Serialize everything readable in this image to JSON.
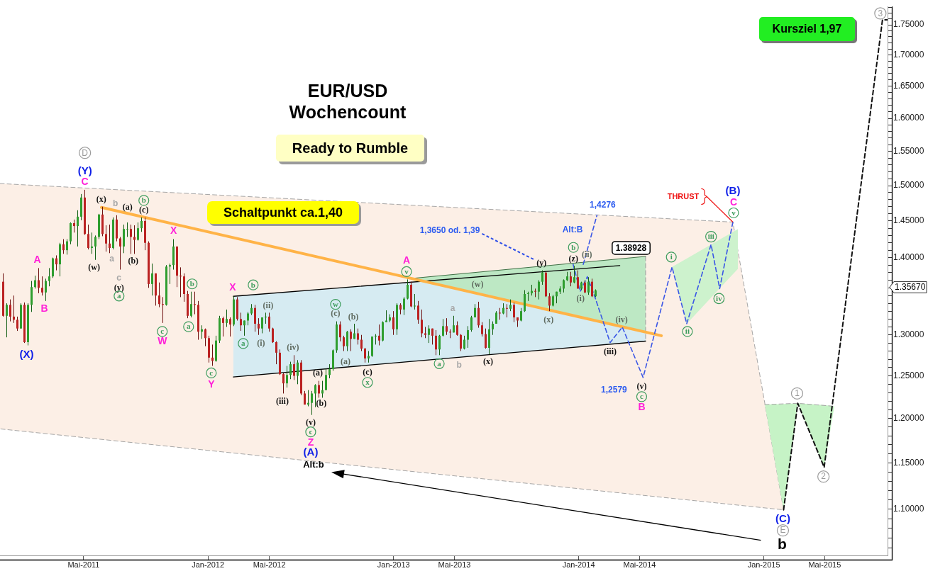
{
  "chart_data": {
    "type": "candlestick",
    "title": "EUR/USD Wochencount",
    "subtitle": "Ready to Rumble",
    "x": [
      "2010-11-22",
      "2010-11-29",
      "2010-12-06",
      "2010-12-13",
      "2010-12-20",
      "2010-12-27",
      "2011-01-03",
      "2011-01-10",
      "2011-01-17",
      "2011-01-24",
      "2011-01-31",
      "2011-02-07",
      "2011-02-14",
      "2011-02-21",
      "2011-02-28",
      "2011-03-07",
      "2011-03-14",
      "2011-03-21",
      "2011-03-28",
      "2011-04-04",
      "2011-04-11",
      "2011-04-18",
      "2011-04-25",
      "2011-05-02",
      "2011-05-09",
      "2011-05-16",
      "2011-05-23",
      "2011-05-30",
      "2011-06-06",
      "2011-06-13",
      "2011-06-20",
      "2011-06-27",
      "2011-07-04",
      "2011-07-11",
      "2011-07-18",
      "2011-07-25",
      "2011-08-01",
      "2011-08-08",
      "2011-08-15",
      "2011-08-22",
      "2011-08-29",
      "2011-09-05",
      "2011-09-12",
      "2011-09-19",
      "2011-09-26",
      "2011-10-03",
      "2011-10-10",
      "2011-10-17",
      "2011-10-24",
      "2011-10-31",
      "2011-11-07",
      "2011-11-14",
      "2011-11-21",
      "2011-11-28",
      "2011-12-05",
      "2011-12-12",
      "2011-12-19",
      "2011-12-26",
      "2012-01-02",
      "2012-01-09",
      "2012-01-16",
      "2012-01-23",
      "2012-01-30",
      "2012-02-06",
      "2012-02-13",
      "2012-02-20",
      "2012-02-27",
      "2012-03-05",
      "2012-03-12",
      "2012-03-19",
      "2012-03-26",
      "2012-04-02",
      "2012-04-09",
      "2012-04-16",
      "2012-04-23",
      "2012-04-30",
      "2012-05-07",
      "2012-05-14",
      "2012-05-21",
      "2012-05-28",
      "2012-06-04",
      "2012-06-11",
      "2012-06-18",
      "2012-06-25",
      "2012-07-02",
      "2012-07-09",
      "2012-07-16",
      "2012-07-23",
      "2012-07-30",
      "2012-08-06",
      "2012-08-13",
      "2012-08-20",
      "2012-08-27",
      "2012-09-03",
      "2012-09-10",
      "2012-09-17",
      "2012-09-24",
      "2012-10-01",
      "2012-10-08",
      "2012-10-15",
      "2012-10-22",
      "2012-10-29",
      "2012-11-05",
      "2012-11-12",
      "2012-11-19",
      "2012-11-26",
      "2012-12-03",
      "2012-12-10",
      "2012-12-17",
      "2012-12-24",
      "2012-12-31",
      "2013-01-07",
      "2013-01-14",
      "2013-01-21",
      "2013-01-28",
      "2013-02-04",
      "2013-02-11",
      "2013-02-18",
      "2013-02-25",
      "2013-03-04",
      "2013-03-11",
      "2013-03-18",
      "2013-03-25",
      "2013-04-01",
      "2013-04-08",
      "2013-04-15",
      "2013-04-22",
      "2013-04-29",
      "2013-05-06",
      "2013-05-13",
      "2013-05-20",
      "2013-05-27",
      "2013-06-03",
      "2013-06-10",
      "2013-06-17",
      "2013-06-24",
      "2013-07-01",
      "2013-07-08",
      "2013-07-15",
      "2013-07-22",
      "2013-07-29",
      "2013-08-05",
      "2013-08-12",
      "2013-08-19",
      "2013-08-26",
      "2013-09-02",
      "2013-09-09",
      "2013-09-16",
      "2013-09-23",
      "2013-09-30",
      "2013-10-07",
      "2013-10-14",
      "2013-10-21",
      "2013-10-28",
      "2013-11-04",
      "2013-11-11",
      "2013-11-18",
      "2013-11-25",
      "2013-12-02",
      "2013-12-09",
      "2013-12-16",
      "2013-12-23",
      "2013-12-30",
      "2014-01-06",
      "2014-01-13",
      "2014-01-20",
      "2014-01-27",
      "2014-02-03"
    ],
    "ohlc": [
      [
        1.368,
        1.379,
        1.323,
        1.324
      ],
      [
        1.324,
        1.34,
        1.297,
        1.338
      ],
      [
        1.338,
        1.345,
        1.317,
        1.323
      ],
      [
        1.323,
        1.35,
        1.315,
        1.319
      ],
      [
        1.319,
        1.323,
        1.305,
        1.308
      ],
      [
        1.308,
        1.34,
        1.308,
        1.338
      ],
      [
        1.338,
        1.341,
        1.29,
        1.291
      ],
      [
        1.291,
        1.34,
        1.287,
        1.338
      ],
      [
        1.338,
        1.369,
        1.329,
        1.361
      ],
      [
        1.361,
        1.376,
        1.359,
        1.37
      ],
      [
        1.37,
        1.386,
        1.353,
        1.36
      ],
      [
        1.36,
        1.375,
        1.35,
        1.354
      ],
      [
        1.354,
        1.372,
        1.343,
        1.369
      ],
      [
        1.369,
        1.386,
        1.362,
        1.375
      ],
      [
        1.375,
        1.4,
        1.373,
        1.399
      ],
      [
        1.399,
        1.403,
        1.383,
        1.391
      ],
      [
        1.391,
        1.42,
        1.375,
        1.418
      ],
      [
        1.418,
        1.425,
        1.405,
        1.41
      ],
      [
        1.41,
        1.425,
        1.404,
        1.422
      ],
      [
        1.422,
        1.448,
        1.418,
        1.447
      ],
      [
        1.447,
        1.452,
        1.434,
        1.443
      ],
      [
        1.443,
        1.465,
        1.415,
        1.456
      ],
      [
        1.456,
        1.488,
        1.451,
        1.483
      ],
      [
        1.483,
        1.494,
        1.431,
        1.432
      ],
      [
        1.432,
        1.445,
        1.411,
        1.413
      ],
      [
        1.413,
        1.434,
        1.405,
        1.415
      ],
      [
        1.415,
        1.43,
        1.397,
        1.428
      ],
      [
        1.428,
        1.46,
        1.425,
        1.459
      ],
      [
        1.459,
        1.47,
        1.429,
        1.432
      ],
      [
        1.432,
        1.444,
        1.408,
        1.419
      ],
      [
        1.419,
        1.445,
        1.406,
        1.413
      ],
      [
        1.413,
        1.455,
        1.411,
        1.452
      ],
      [
        1.452,
        1.458,
        1.422,
        1.426
      ],
      [
        1.426,
        1.428,
        1.384,
        1.415
      ],
      [
        1.415,
        1.445,
        1.406,
        1.439
      ],
      [
        1.439,
        1.448,
        1.428,
        1.439
      ],
      [
        1.439,
        1.445,
        1.405,
        1.428
      ],
      [
        1.428,
        1.444,
        1.405,
        1.424
      ],
      [
        1.424,
        1.448,
        1.423,
        1.44
      ],
      [
        1.44,
        1.455,
        1.435,
        1.45
      ],
      [
        1.45,
        1.455,
        1.41,
        1.42
      ],
      [
        1.42,
        1.422,
        1.36,
        1.365
      ],
      [
        1.365,
        1.392,
        1.35,
        1.379
      ],
      [
        1.379,
        1.379,
        1.337,
        1.35
      ],
      [
        1.35,
        1.367,
        1.335,
        1.339
      ],
      [
        1.339,
        1.348,
        1.315,
        1.338
      ],
      [
        1.338,
        1.39,
        1.337,
        1.388
      ],
      [
        1.388,
        1.392,
        1.365,
        1.39
      ],
      [
        1.39,
        1.425,
        1.384,
        1.415
      ],
      [
        1.415,
        1.415,
        1.361,
        1.376
      ],
      [
        1.376,
        1.387,
        1.348,
        1.375
      ],
      [
        1.375,
        1.379,
        1.342,
        1.352
      ],
      [
        1.352,
        1.356,
        1.321,
        1.324
      ],
      [
        1.324,
        1.355,
        1.322,
        1.339
      ],
      [
        1.339,
        1.355,
        1.326,
        1.338
      ],
      [
        1.338,
        1.343,
        1.294,
        1.304
      ],
      [
        1.304,
        1.312,
        1.295,
        1.307
      ],
      [
        1.307,
        1.308,
        1.286,
        1.296
      ],
      [
        1.296,
        1.299,
        1.266,
        1.272
      ],
      [
        1.272,
        1.288,
        1.262,
        1.268
      ],
      [
        1.268,
        1.299,
        1.267,
        1.293
      ],
      [
        1.293,
        1.324,
        1.29,
        1.321
      ],
      [
        1.321,
        1.323,
        1.298,
        1.315
      ],
      [
        1.315,
        1.332,
        1.31,
        1.32
      ],
      [
        1.32,
        1.322,
        1.298,
        1.313
      ],
      [
        1.313,
        1.349,
        1.311,
        1.345
      ],
      [
        1.345,
        1.348,
        1.318,
        1.32
      ],
      [
        1.32,
        1.328,
        1.305,
        1.312
      ],
      [
        1.312,
        1.318,
        1.299,
        1.318
      ],
      [
        1.318,
        1.329,
        1.312,
        1.327
      ],
      [
        1.327,
        1.339,
        1.325,
        1.334
      ],
      [
        1.334,
        1.338,
        1.304,
        1.314
      ],
      [
        1.314,
        1.321,
        1.3,
        1.308
      ],
      [
        1.308,
        1.322,
        1.302,
        1.322
      ],
      [
        1.322,
        1.328,
        1.314,
        1.323
      ],
      [
        1.323,
        1.328,
        1.304,
        1.308
      ],
      [
        1.308,
        1.309,
        1.29,
        1.291
      ],
      [
        1.291,
        1.292,
        1.264,
        1.278
      ],
      [
        1.278,
        1.282,
        1.251,
        1.252
      ],
      [
        1.252,
        1.253,
        1.229,
        1.241
      ],
      [
        1.241,
        1.262,
        1.236,
        1.251
      ],
      [
        1.251,
        1.267,
        1.246,
        1.264
      ],
      [
        1.264,
        1.275,
        1.245,
        1.25
      ],
      [
        1.25,
        1.269,
        1.24,
        1.266
      ],
      [
        1.266,
        1.269,
        1.227,
        1.229
      ],
      [
        1.229,
        1.232,
        1.216,
        1.216
      ],
      [
        1.216,
        1.233,
        1.214,
        1.218
      ],
      [
        1.218,
        1.232,
        1.204,
        1.229
      ],
      [
        1.229,
        1.24,
        1.213,
        1.239
      ],
      [
        1.239,
        1.244,
        1.224,
        1.229
      ],
      [
        1.229,
        1.244,
        1.224,
        1.233
      ],
      [
        1.233,
        1.259,
        1.233,
        1.251
      ],
      [
        1.251,
        1.264,
        1.247,
        1.258
      ],
      [
        1.258,
        1.282,
        1.256,
        1.281
      ],
      [
        1.281,
        1.317,
        1.278,
        1.313
      ],
      [
        1.313,
        1.317,
        1.292,
        1.297
      ],
      [
        1.297,
        1.299,
        1.28,
        1.286
      ],
      [
        1.286,
        1.305,
        1.28,
        1.304
      ],
      [
        1.304,
        1.307,
        1.28,
        1.295
      ],
      [
        1.295,
        1.314,
        1.295,
        1.302
      ],
      [
        1.302,
        1.308,
        1.288,
        1.294
      ],
      [
        1.294,
        1.3,
        1.28,
        1.283
      ],
      [
        1.283,
        1.284,
        1.266,
        1.271
      ],
      [
        1.271,
        1.28,
        1.266,
        1.274
      ],
      [
        1.274,
        1.298,
        1.273,
        1.298
      ],
      [
        1.298,
        1.301,
        1.288,
        1.299
      ],
      [
        1.299,
        1.313,
        1.287,
        1.293
      ],
      [
        1.293,
        1.317,
        1.292,
        1.316
      ],
      [
        1.316,
        1.331,
        1.316,
        1.318
      ],
      [
        1.318,
        1.326,
        1.316,
        1.322
      ],
      [
        1.322,
        1.33,
        1.3,
        1.307
      ],
      [
        1.307,
        1.34,
        1.3,
        1.338
      ],
      [
        1.338,
        1.34,
        1.326,
        1.332
      ],
      [
        1.332,
        1.348,
        1.325,
        1.346
      ],
      [
        1.346,
        1.371,
        1.345,
        1.364
      ],
      [
        1.364,
        1.368,
        1.335,
        1.336
      ],
      [
        1.336,
        1.352,
        1.332,
        1.337
      ],
      [
        1.337,
        1.343,
        1.314,
        1.319
      ],
      [
        1.319,
        1.332,
        1.297,
        1.302
      ],
      [
        1.302,
        1.31,
        1.296,
        1.3
      ],
      [
        1.3,
        1.312,
        1.29,
        1.308
      ],
      [
        1.308,
        1.308,
        1.288,
        1.299
      ],
      [
        1.299,
        1.306,
        1.275,
        1.282
      ],
      [
        1.282,
        1.3,
        1.275,
        1.299
      ],
      [
        1.299,
        1.32,
        1.298,
        1.311
      ],
      [
        1.311,
        1.321,
        1.3,
        1.304
      ],
      [
        1.304,
        1.307,
        1.296,
        1.303
      ],
      [
        1.303,
        1.324,
        1.303,
        1.312
      ],
      [
        1.312,
        1.317,
        1.299,
        1.3
      ],
      [
        1.3,
        1.301,
        1.28,
        1.283
      ],
      [
        1.283,
        1.299,
        1.282,
        1.294
      ],
      [
        1.294,
        1.311,
        1.284,
        1.306
      ],
      [
        1.306,
        1.324,
        1.304,
        1.322
      ],
      [
        1.322,
        1.339,
        1.322,
        1.334
      ],
      [
        1.334,
        1.342,
        1.309,
        1.312
      ],
      [
        1.312,
        1.316,
        1.298,
        1.301
      ],
      [
        1.301,
        1.308,
        1.283,
        1.284
      ],
      [
        1.284,
        1.32,
        1.276,
        1.307
      ],
      [
        1.307,
        1.317,
        1.3,
        1.314
      ],
      [
        1.314,
        1.33,
        1.314,
        1.328
      ],
      [
        1.328,
        1.334,
        1.319,
        1.327
      ],
      [
        1.327,
        1.34,
        1.326,
        1.334
      ],
      [
        1.334,
        1.339,
        1.322,
        1.333
      ],
      [
        1.333,
        1.345,
        1.33,
        1.338
      ],
      [
        1.338,
        1.341,
        1.316,
        1.322
      ],
      [
        1.322,
        1.322,
        1.31,
        1.318
      ],
      [
        1.318,
        1.334,
        1.317,
        1.33
      ],
      [
        1.33,
        1.357,
        1.329,
        1.352
      ],
      [
        1.352,
        1.355,
        1.343,
        1.353
      ],
      [
        1.353,
        1.364,
        1.35,
        1.356
      ],
      [
        1.356,
        1.359,
        1.348,
        1.355
      ],
      [
        1.355,
        1.37,
        1.345,
        1.368
      ],
      [
        1.368,
        1.383,
        1.364,
        1.38
      ],
      [
        1.38,
        1.382,
        1.348,
        1.349
      ],
      [
        1.349,
        1.353,
        1.33,
        1.337
      ],
      [
        1.337,
        1.351,
        1.336,
        1.349
      ],
      [
        1.349,
        1.355,
        1.34,
        1.355
      ],
      [
        1.355,
        1.362,
        1.352,
        1.359
      ],
      [
        1.359,
        1.371,
        1.354,
        1.37
      ],
      [
        1.37,
        1.381,
        1.369,
        1.375
      ],
      [
        1.375,
        1.381,
        1.362,
        1.367
      ],
      [
        1.367,
        1.389,
        1.366,
        1.374
      ],
      [
        1.374,
        1.383,
        1.359,
        1.359
      ],
      [
        1.359,
        1.368,
        1.357,
        1.367
      ],
      [
        1.367,
        1.37,
        1.353,
        1.354
      ],
      [
        1.354,
        1.374,
        1.351,
        1.368
      ],
      [
        1.368,
        1.372,
        1.348,
        1.349
      ],
      [
        1.349,
        1.358,
        1.348,
        1.3567
      ]
    ],
    "xlim": [
      "2010-11-17",
      "2015-09-02"
    ],
    "xticks": [
      {
        "value": "2011-05",
        "label": "Mai-2011"
      },
      {
        "value": "2012-01",
        "label": "Jan-2012"
      },
      {
        "value": "2012-05",
        "label": "Mai-2012"
      },
      {
        "value": "2013-01",
        "label": "Jan-2013"
      },
      {
        "value": "2013-05",
        "label": "Mai-2013"
      },
      {
        "value": "2014-01",
        "label": "Jan-2014"
      },
      {
        "value": "2014-05",
        "label": "Mai-2014"
      },
      {
        "value": "2015-01",
        "label": "Jan-2015"
      },
      {
        "value": "2015-05",
        "label": "Mai-2015"
      }
    ],
    "ylim": [
      1.0523,
      1.781
    ],
    "log": "y",
    "yticks": [
      {
        "value": 1.06,
        "label": null
      },
      {
        "value": 1.07,
        "label": null
      },
      {
        "value": 1.08,
        "label": null
      },
      {
        "value": 1.09,
        "label": null
      },
      {
        "value": 1.1,
        "label": "1.10000"
      },
      {
        "value": 1.11,
        "label": null
      },
      {
        "value": 1.12,
        "label": null
      },
      {
        "value": 1.13,
        "label": null
      },
      {
        "value": 1.14,
        "label": null
      },
      {
        "value": 1.15,
        "label": "1.15000"
      },
      {
        "value": 1.16,
        "label": null
      },
      {
        "value": 1.17,
        "label": null
      },
      {
        "value": 1.18,
        "label": null
      },
      {
        "value": 1.19,
        "label": null
      },
      {
        "value": 1.2,
        "label": "1.20000"
      },
      {
        "value": 1.21,
        "label": null
      },
      {
        "value": 1.22,
        "label": null
      },
      {
        "value": 1.23,
        "label": null
      },
      {
        "value": 1.24,
        "label": null
      },
      {
        "value": 1.25,
        "label": "1.25000"
      },
      {
        "value": 1.26,
        "label": null
      },
      {
        "value": 1.27,
        "label": null
      },
      {
        "value": 1.28,
        "label": null
      },
      {
        "value": 1.29,
        "label": null
      },
      {
        "value": 1.3,
        "label": "1.30000"
      },
      {
        "value": 1.31,
        "label": null
      },
      {
        "value": 1.32,
        "label": null
      },
      {
        "value": 1.33,
        "label": null
      },
      {
        "value": 1.34,
        "label": null
      },
      {
        "value": 1.35,
        "label": null
      },
      {
        "value": 1.36,
        "label": null
      },
      {
        "value": 1.37,
        "label": null
      },
      {
        "value": 1.38,
        "label": null
      },
      {
        "value": 1.39,
        "label": null
      },
      {
        "value": 1.4,
        "label": "1.40000"
      },
      {
        "value": 1.41,
        "label": null
      },
      {
        "value": 1.42,
        "label": null
      },
      {
        "value": 1.43,
        "label": null
      },
      {
        "value": 1.44,
        "label": null
      },
      {
        "value": 1.45,
        "label": "1.45000"
      },
      {
        "value": 1.46,
        "label": null
      },
      {
        "value": 1.47,
        "label": null
      },
      {
        "value": 1.48,
        "label": null
      },
      {
        "value": 1.49,
        "label": null
      },
      {
        "value": 1.5,
        "label": "1.50000"
      },
      {
        "value": 1.51,
        "label": null
      },
      {
        "value": 1.52,
        "label": null
      },
      {
        "value": 1.53,
        "label": null
      },
      {
        "value": 1.54,
        "label": null
      },
      {
        "value": 1.55,
        "label": "1.55000"
      },
      {
        "value": 1.56,
        "label": null
      },
      {
        "value": 1.57,
        "label": null
      },
      {
        "value": 1.58,
        "label": null
      },
      {
        "value": 1.59,
        "label": null
      },
      {
        "value": 1.6,
        "label": "1.60000"
      },
      {
        "value": 1.61,
        "label": null
      },
      {
        "value": 1.62,
        "label": null
      },
      {
        "value": 1.63,
        "label": null
      },
      {
        "value": 1.64,
        "label": null
      },
      {
        "value": 1.65,
        "label": "1.65000"
      },
      {
        "value": 1.66,
        "label": null
      },
      {
        "value": 1.67,
        "label": null
      },
      {
        "value": 1.68,
        "label": null
      },
      {
        "value": 1.69,
        "label": null
      },
      {
        "value": 1.7,
        "label": "1.70000"
      },
      {
        "value": 1.71,
        "label": null
      },
      {
        "value": 1.72,
        "label": null
      },
      {
        "value": 1.73,
        "label": null
      },
      {
        "value": 1.74,
        "label": null
      },
      {
        "value": 1.75,
        "label": "1.75000"
      },
      {
        "value": 1.76,
        "label": null
      },
      {
        "value": 1.77,
        "label": null
      },
      {
        "value": 1.78,
        "label": null
      }
    ],
    "series": [
      {
        "type": "line",
        "x": [
          "2010-11-17",
          "2014-11-01",
          "2015-02-09"
        ],
        "values": [
          null,
          null,
          null
        ],
        "lower": [
          1.188,
          1.1048,
          1.0993
        ],
        "upper": [
          1.503,
          1.4485,
          1.0993
        ],
        "color": "#fcefe6"
      },
      {
        "type": "line",
        "x": [
          "2010-11-17",
          "2014-11-01",
          "2015-02-09",
          "2010-11-17"
        ],
        "values": [
          1.503,
          1.4485,
          1.0993,
          1.188
        ],
        "color": "#a6a6a6",
        "line_style": "dashed"
      },
      {
        "type": "line",
        "x": [
          "2012-02-20",
          "2014-05-13"
        ],
        "values": [
          null,
          null
        ],
        "lower": [
          1.2487,
          1.2923
        ],
        "upper": [
          1.349,
          1.391
        ],
        "color": "#d6ebf2"
      },
      {
        "type": "line",
        "x": [
          "2013-01-28",
          "2014-05-13"
        ],
        "values": [
          null,
          null
        ],
        "lower": [
          1.3718,
          1.3036
        ],
        "upper": [
          1.3718,
          1.4016
        ],
        "color": "#bde8c4"
      },
      {
        "type": "line",
        "x": [
          "2014-05-13",
          "2014-05-13"
        ],
        "values": [
          1.4016,
          1.2923
        ],
        "color": "#9a9a9a",
        "line_style": "dashed"
      },
      {
        "type": "line",
        "x": [
          "2012-02-20",
          "2014-05-13"
        ],
        "values": [
          1.2487,
          1.2923
        ],
        "color": "#000000",
        "line_style": "solid"
      },
      {
        "type": "line",
        "x": [
          "2012-02-20",
          "2014-03-23"
        ],
        "values": [
          1.349,
          1.3893
        ],
        "color": "#000000",
        "line_style": "solid"
      },
      {
        "type": "line",
        "x": [
          "2013-01-28",
          "2014-05-13"
        ],
        "values": [
          1.3718,
          1.4016
        ],
        "color": "#3f6f45",
        "line_style": "solid"
      },
      {
        "type": "line",
        "x": [
          "2011-06-05",
          "2014-06-13"
        ],
        "values": [
          1.469,
          1.299
        ],
        "color": "#ffb347",
        "line_style": "solid"
      },
      {
        "type": "line",
        "x": [
          "2014-07-04",
          "2014-08-02",
          "2014-11-11"
        ],
        "values": [
          null,
          null,
          null
        ],
        "lower": [
          1.3875,
          1.314,
          1.385
        ],
        "upper": [
          1.3875,
          1.3988,
          1.4388
        ],
        "color": "#cdf2cd"
      },
      {
        "type": "line",
        "x": [
          "2015-01-03",
          "2015-02-09",
          "2015-03-09"
        ],
        "values": [
          null,
          null,
          null
        ],
        "lower": [
          1.216,
          1.0993,
          1.2175
        ],
        "upper": [
          1.216,
          1.2168,
          1.2175
        ],
        "color": "#c6f3c6"
      },
      {
        "type": "line",
        "x": [
          "2015-03-09",
          "2015-04-30",
          "2015-05-20"
        ],
        "values": [
          null,
          null,
          null
        ],
        "lower": [
          1.2175,
          1.145,
          1.214
        ],
        "upper": [
          1.2175,
          1.2155,
          1.214
        ],
        "color": "#c6f3c6"
      },
      {
        "type": "line",
        "x": [
          "2015-01-03",
          "2015-03-09",
          "2015-05-20"
        ],
        "values": [
          1.216,
          1.2175,
          1.214
        ],
        "color": "#a6a6a6",
        "line_style": "dashed"
      },
      {
        "type": "line",
        "x": [
          "2013-12-21",
          "2014-01-04",
          "2014-01-18",
          "2014-02-02",
          "2014-03-04",
          "2014-03-28",
          "2014-05-08",
          "2014-07-04",
          "2014-08-02",
          "2014-09-19",
          "2014-10-06",
          "2014-11-01"
        ],
        "values": [
          1.391,
          1.3553,
          1.3746,
          1.348,
          1.2905,
          1.3098,
          1.248,
          1.3875,
          1.314,
          1.4177,
          1.359,
          1.4485
        ],
        "color": "#3a56e6",
        "line_style": "dashed"
      },
      {
        "type": "line",
        "x": [
          "2014-01-10",
          "2014-02-06"
        ],
        "values": [
          1.391,
          1.458
        ],
        "color": "#3a56e6",
        "line_style": "dashed"
      },
      {
        "type": "line",
        "x": [
          "2015-02-09",
          "2015-03-09",
          "2015-04-30",
          "2015-08-23",
          "2015-09-02"
        ],
        "values": [
          1.0993,
          1.2175,
          1.145,
          1.7585,
          1.7585
        ],
        "color": "#111111",
        "line_style": "dashed"
      }
    ],
    "annotations": [
      "D",
      {
        "text": "(Y)",
        "x": "2011-05-02",
        "y": 1.494
      },
      {
        "text": "C",
        "x": "2011-05-02",
        "y": 1.494
      },
      {
        "text": "(x)",
        "x": "2011-06-06",
        "y": 1.47
      },
      {
        "text": "b",
        "x": "2011-07-04",
        "y": 1.458
      },
      {
        "text": "(a)",
        "x": "2011-07-25",
        "y": 1.448
      },
      {
        "text": "b",
        "x": "2011-08-29",
        "y": 1.455
      },
      {
        "text": "(c)",
        "x": "2011-08-29",
        "y": 1.455
      },
      {
        "text": "X",
        "x": "2011-10-24",
        "y": 1.425
      },
      {
        "text": "A",
        "x": "2011-01-31",
        "y": 1.386
      },
      {
        "text": "(w)",
        "x": "2011-05-23",
        "y": 1.397
      },
      {
        "text": "a",
        "x": "2011-06-20",
        "y": 1.406
      },
      {
        "text": "(b)",
        "x": "2011-08-08",
        "y": 1.405
      },
      {
        "text": "c",
        "x": "2011-07-11",
        "y": 1.384
      },
      {
        "text": "(y)",
        "x": "2011-07-11",
        "y": 1.384
      },
      "a",
      {
        "text": "B",
        "x": "2011-02-14",
        "y": 1.343
      },
      {
        "text": "b",
        "x": "2011-11-28",
        "y": 1.355
      },
      {
        "text": "a",
        "x": "2011-11-21",
        "y": 1.321
      },
      {
        "text": "c",
        "x": "2011-10-03",
        "y": 1.315
      },
      {
        "text": "W",
        "x": "2011-10-03",
        "y": 1.315
      },
      {
        "text": "(X)",
        "x": "2011-01-10",
        "y": 1.287
      },
      {
        "text": "c",
        "x": "2012-01-09",
        "y": 1.262
      },
      {
        "text": "Y",
        "x": "2012-01-09",
        "y": 1.262
      },
      {
        "text": "X",
        "x": "2012-02-20",
        "y": 1.349
      },
      {
        "text": "b",
        "x": "2012-03-26",
        "y": 1.339
      },
      {
        "text": "(ii)",
        "x": "2012-04-30",
        "y": 1.328
      },
      {
        "text": "a",
        "x": "2012-03-12",
        "y": 1.299
      },
      {
        "text": "(i)",
        "x": "2012-04-09",
        "y": 1.3
      },
      {
        "text": "(iv)",
        "x": "2012-06-18",
        "y": 1.275
      },
      {
        "text": "(iii)",
        "x": "2012-05-28",
        "y": 1.229
      },
      {
        "text": "(a)",
        "x": "2012-07-30",
        "y": 1.24
      },
      {
        "text": "(b)",
        "x": "2012-08-06",
        "y": 1.224
      },
      {
        "text": "(v)",
        "x": "2012-07-23",
        "y": 1.204
      },
      {
        "text": "c",
        "x": "2012-07-23",
        "y": 1.204
      },
      {
        "text": "Z",
        "x": "2012-07-23",
        "y": 1.204
      },
      "(A)",
      "Alt:b",
      {
        "text": "w",
        "x": "2012-09-10",
        "y": 1.317
      },
      {
        "text": "(c)",
        "x": "2012-09-10",
        "y": 1.317
      },
      {
        "text": "(b)",
        "x": "2012-10-15",
        "y": 1.314
      },
      {
        "text": "(a)",
        "x": "2012-09-24",
        "y": 1.28
      },
      {
        "text": "(c)",
        "x": "2012-11-12",
        "y": 1.266
      },
      {
        "text": "x",
        "x": "2012-11-12",
        "y": 1.266
      },
      {
        "text": "A",
        "x": "2013-01-28",
        "y": 1.371
      },
      {
        "text": "v",
        "x": "2013-01-28",
        "y": 1.371
      },
      {
        "text": "(w)",
        "x": "2013-06-17",
        "y": 1.342
      },
      {
        "text": "a",
        "x": "2013-04-29",
        "y": 1.324
      },
      {
        "text": "a",
        "x": "2013-04-01",
        "y": 1.275
      },
      {
        "text": "b",
        "x": "2013-05-13",
        "y": 1.28
      },
      {
        "text": "(x)",
        "x": "2013-07-08",
        "y": 1.276
      },
      "1,3650 od. 1,39",
      {
        "text": "(y)",
        "x": "2013-10-21",
        "y": 1.383
      },
      {
        "text": "(x)",
        "x": "2013-11-04",
        "y": 1.33
      },
      "Alt:B",
      {
        "text": "b",
        "x": "2013-12-23",
        "y": 1.389
      },
      {
        "text": "(z)",
        "x": "2013-12-23",
        "y": 1.389
      },
      {
        "text": "(ii)",
        "x": "2014-01-20",
        "y": 1.374
      },
      {
        "text": "(i)",
        "x": "2014-01-06",
        "y": 1.357
      },
      {
        "text": "(iii)",
        "x": "2014-03-04",
        "y": 1.2905
      },
      {
        "text": "1,4276",
        "x": "2014-02-06",
        "y": 1.458
      },
      {
        "text": "1.38928",
        "x": "2014-03-23",
        "y": 1.3893
      },
      {
        "text": "(iv)",
        "x": "2014-03-28",
        "y": 1.3098
      },
      {
        "text": "1,2579",
        "x": "2014-05-08",
        "y": 1.248
      },
      {
        "text": "(v)",
        "x": "2014-05-08",
        "y": 1.248
      },
      {
        "text": "c",
        "x": "2014-05-08",
        "y": 1.248
      },
      {
        "text": "B",
        "x": "2014-05-08",
        "y": 1.248
      },
      {
        "text": "i",
        "x": "2014-07-04",
        "y": 1.3875
      },
      {
        "text": "ii",
        "x": "2014-08-02",
        "y": 1.314
      },
      {
        "text": "iii",
        "x": "2014-09-19",
        "y": 1.4177
      },
      {
        "text": "iv",
        "x": "2014-10-06",
        "y": 1.359
      },
      {
        "text": "THRUST",
        "x": "2014-11-01",
        "y": 1.4485
      },
      {
        "text": "(B)",
        "x": "2014-11-01",
        "y": 1.4485
      },
      {
        "text": "C",
        "x": "2014-11-01",
        "y": 1.4485
      },
      {
        "text": "v",
        "x": "2014-11-01",
        "y": 1.4485
      },
      {
        "text": "1",
        "x": "2015-03-09",
        "y": 1.2175
      },
      {
        "text": "2",
        "x": "2015-04-30",
        "y": 1.145
      },
      {
        "text": "(C)",
        "x": "2015-02-09",
        "y": 1.0993
      },
      {
        "text": "E",
        "x": "2015-02-09",
        "y": 1.0993
      },
      {
        "text": "b",
        "x": "2015-02-09",
        "y": 1.0993
      },
      {
        "text": "3",
        "x": "2015-08-23",
        "y": 1.7585
      },
      "1.35670",
      "Schaltpunkt ca.1,40",
      "Kursziel 1,97"
    ]
  }
}
